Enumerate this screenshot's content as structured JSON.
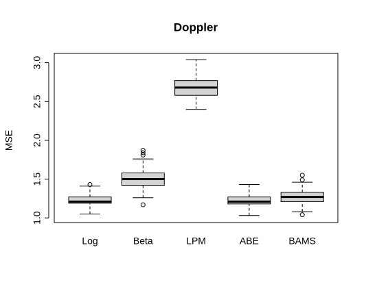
{
  "chart_data": {
    "type": "box",
    "title": "Doppler",
    "y_label": "MSE",
    "categories": [
      "Log",
      "Beta",
      "LPM",
      "ABE",
      "BAMS"
    ],
    "color": "#d3d3d3",
    "boxes": [
      {
        "whislo": 1.05,
        "q1": 1.19,
        "med": 1.21,
        "q3": 1.27,
        "whishi": 1.41,
        "fliers": [
          1.43
        ]
      },
      {
        "whislo": 1.26,
        "q1": 1.42,
        "med": 1.5,
        "q3": 1.58,
        "whishi": 1.76,
        "fliers": [
          1.87,
          1.84,
          1.81,
          1.17
        ]
      },
      {
        "whislo": 2.4,
        "q1": 2.58,
        "med": 2.68,
        "q3": 2.77,
        "whishi": 3.04,
        "fliers": []
      },
      {
        "whislo": 1.03,
        "q1": 1.18,
        "med": 1.21,
        "q3": 1.27,
        "whishi": 1.43,
        "fliers": []
      },
      {
        "whislo": 1.08,
        "q1": 1.21,
        "med": 1.27,
        "q3": 1.33,
        "whishi": 1.46,
        "fliers": [
          1.55,
          1.49,
          1.04
        ]
      }
    ],
    "ylim": [
      0.94,
      3.12
    ],
    "yticks": [
      {
        "value": 1,
        "label": "1.0"
      },
      1.5,
      {
        "value": 2,
        "label": "2.0"
      },
      2.5,
      {
        "value": 3,
        "label": "3.0"
      }
    ]
  }
}
